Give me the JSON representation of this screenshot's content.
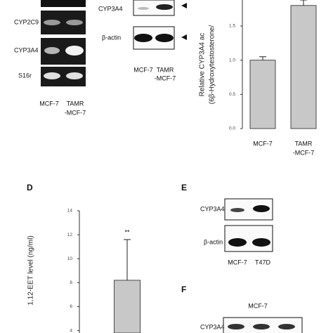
{
  "panels": {
    "a": {
      "rows": [
        "CYP2C9",
        "CYP3A4",
        "S16r"
      ],
      "lanes": [
        "MCF-7",
        "TAMR",
        "-MCF-7"
      ]
    },
    "b": {
      "rows": [
        "CYP3A4",
        "β-actin"
      ],
      "lanes": [
        "MCF-7",
        "TAMR",
        "-MCF-7"
      ]
    },
    "e": {
      "label": "E",
      "rows": [
        "CYP3A4",
        "β-actin"
      ],
      "lanes": [
        "MCF-7",
        "T47D"
      ]
    },
    "f": {
      "label": "F",
      "title": "MCF-7",
      "rows": [
        "CYP3A4"
      ]
    }
  },
  "chart_data": [
    {
      "type": "bar",
      "ylabel": [
        "Relative CYP3A4 ac",
        "(6β-Hydroxytestosterone/"
      ],
      "categories": [
        [
          "MCF-7"
        ],
        [
          "TAMR",
          "-MCF-7"
        ]
      ],
      "values": [
        1.0,
        1.8
      ],
      "errors": [
        0.05,
        0.08
      ],
      "color": "#c8c8c8",
      "ylim": [
        0,
        1.88
      ],
      "yticks": [
        {
          "value": 0,
          "label": "0.0"
        },
        {
          "value": 0.5,
          "label": "0.5"
        },
        {
          "value": 1,
          "label": "1.0"
        },
        {
          "value": 1.5,
          "label": "1.5"
        }
      ]
    },
    {
      "type": "bar",
      "label": "D",
      "ylabel": [
        "1,12-EET level (ng/ml)"
      ],
      "values": [
        8.2
      ],
      "errors": [
        3.4
      ],
      "annotations": [
        "**"
      ],
      "color": "#c8c8c8",
      "ylim": [
        3.8,
        14
      ],
      "yticks": [
        4,
        6,
        8,
        10,
        12,
        14
      ]
    }
  ]
}
